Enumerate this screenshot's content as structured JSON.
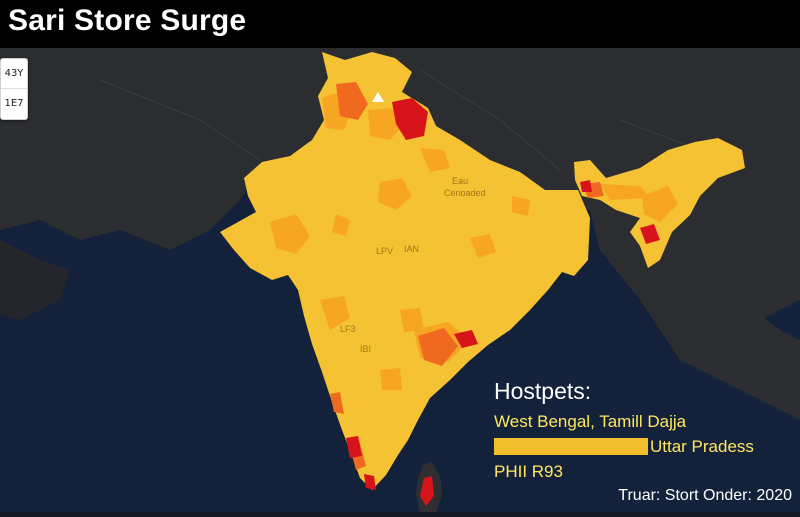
{
  "header": {
    "title": "Sari Store Surge"
  },
  "zoom": {
    "in_label": "43Y",
    "out_label": "1E7"
  },
  "legend": {
    "title": "Hostpets:",
    "line1": "West Bengal, Tamill Dajja",
    "bar_label": "Uttar Pradess",
    "line3": "PHII R93",
    "colors": {
      "base": "#f5c234",
      "medium": "#f6a623",
      "high": "#ef6a1e",
      "peak": "#d8141b"
    }
  },
  "source": "Truar: Stort Onder: 2020",
  "map_labels": [
    "Eau",
    "Cenoaded",
    "LPV",
    "IAN",
    "LF3",
    "IBI"
  ]
}
